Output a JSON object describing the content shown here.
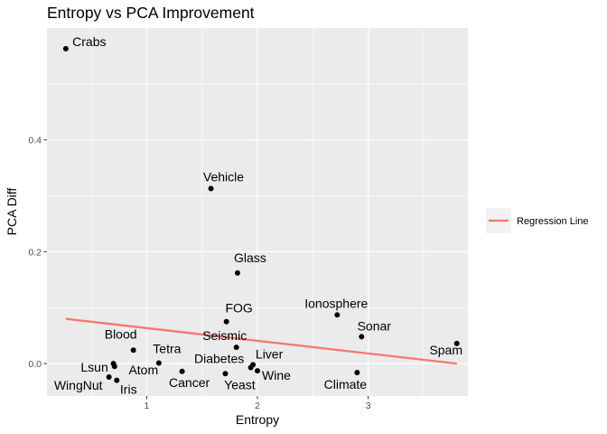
{
  "chart_data": {
    "type": "scatter",
    "title": "Entropy vs PCA Improvement",
    "xlabel": "Entropy",
    "ylabel": "PCA Diff",
    "xlim": [
      0.1,
      3.9
    ],
    "ylim": [
      -0.058,
      0.6
    ],
    "x_ticks": [
      1,
      2,
      3
    ],
    "y_ticks": [
      0.0,
      0.2,
      0.4
    ],
    "x_tick_labels": [
      "1",
      "2",
      "3"
    ],
    "y_tick_labels": [
      "0.0",
      "0.2",
      "0.4"
    ],
    "grid": true,
    "background": "#ebebeb",
    "point_color": "#000000",
    "points": [
      {
        "label": "Crabs",
        "x": 0.27,
        "y": 0.563
      },
      {
        "label": "Vehicle",
        "x": 1.58,
        "y": 0.313
      },
      {
        "label": "Glass",
        "x": 1.82,
        "y": 0.162
      },
      {
        "label": "FOG",
        "x": 1.72,
        "y": 0.075
      },
      {
        "label": "Ionosphere",
        "x": 2.72,
        "y": 0.087
      },
      {
        "label": "Sonar",
        "x": 2.94,
        "y": 0.048
      },
      {
        "label": "Spam",
        "x": 3.8,
        "y": 0.036
      },
      {
        "label": "Blood",
        "x": 0.88,
        "y": 0.024
      },
      {
        "label": "Seismic",
        "x": 1.81,
        "y": 0.029
      },
      {
        "label": "Tetra",
        "x": 1.11,
        "y": 0.001
      },
      {
        "label": "Diabetes",
        "x": 1.94,
        "y": -0.007
      },
      {
        "label": "Liver",
        "x": 1.96,
        "y": -0.002
      },
      {
        "label": "Lsun",
        "x": 0.7,
        "y": 0.0
      },
      {
        "label": "Atom",
        "x": 0.71,
        "y": -0.005
      },
      {
        "label": "Cancer",
        "x": 1.32,
        "y": -0.014
      },
      {
        "label": "Yeast",
        "x": 1.71,
        "y": -0.018
      },
      {
        "label": "Wine",
        "x": 2.0,
        "y": -0.013
      },
      {
        "label": "Climate",
        "x": 2.9,
        "y": -0.016
      },
      {
        "label": "WingNut",
        "x": 0.66,
        "y": -0.024
      },
      {
        "label": "Iris",
        "x": 0.73,
        "y": -0.03
      }
    ],
    "series": [
      {
        "name": "Regression Line",
        "type": "line",
        "color": "#f8766d",
        "x": [
          0.27,
          3.8
        ],
        "y": [
          0.08,
          0.0
        ]
      }
    ],
    "legend": {
      "position": "right",
      "entries": [
        "Regression Line"
      ]
    }
  }
}
